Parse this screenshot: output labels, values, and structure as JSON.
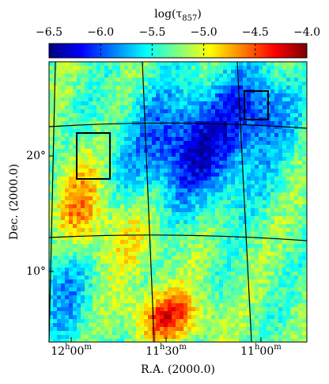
{
  "chart_data": {
    "type": "map",
    "colorbar": {
      "label": "log(τ857)",
      "clim": [
        -6.5,
        -4.0
      ],
      "colormap": "jet",
      "ticks": [
        {
          "value": -6.5,
          "label": "−6.5"
        },
        {
          "value": -6.0,
          "label": "−6.0"
        },
        {
          "value": -5.5,
          "label": "−5.5"
        },
        {
          "value": -5.0,
          "label": "−5.0"
        },
        {
          "value": -4.5,
          "label": "−4.5"
        },
        {
          "value": -4.0,
          "label": "−4.0"
        }
      ]
    },
    "x_label": "R.A. (2000.0)",
    "y_label": "Dec. (2000.0)",
    "xlim": [
      12.117,
      10.758
    ],
    "xticks": [
      {
        "value": 12.0,
        "label": "12h00m"
      },
      {
        "value": 11.5,
        "label": "11h30m"
      },
      {
        "value": 11.0,
        "label": "11h00m"
      }
    ],
    "ylim": [
      3.9,
      28.15
    ],
    "yticks": [
      {
        "value": 20,
        "label": "20°"
      },
      {
        "value": 10,
        "label": "10°"
      }
    ]
  }
}
